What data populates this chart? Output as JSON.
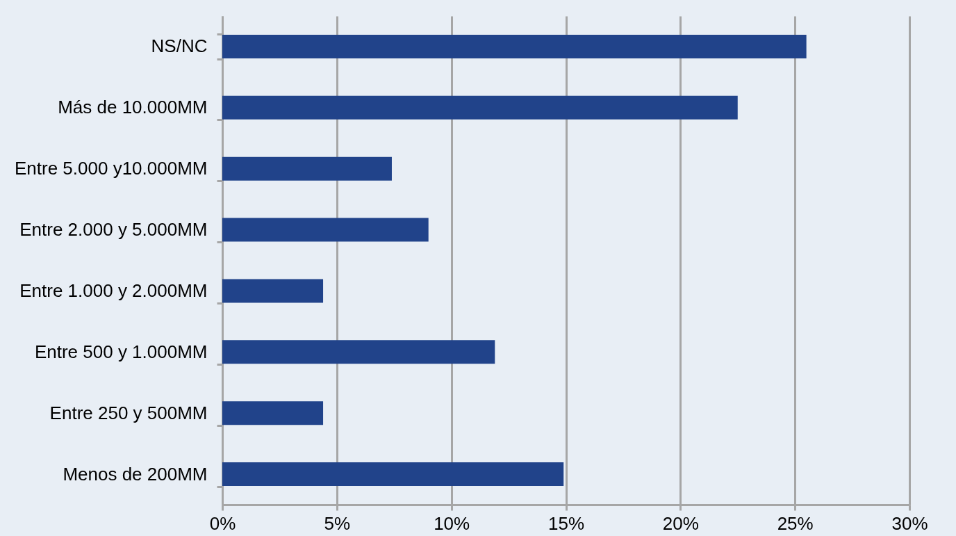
{
  "chart_data": {
    "type": "bar",
    "orientation": "horizontal",
    "categories": [
      "NS/NC",
      "Más de 10.000MM",
      "Entre 5.000 y10.000MM",
      "Entre 2.000 y 5.000MM",
      "Entre 1.000 y 2.000MM",
      "Entre 500 y 1.000MM",
      "Entre 250 y 500MM",
      "Menos de 200MM"
    ],
    "values": [
      25.5,
      22.5,
      7.4,
      9.0,
      4.4,
      11.9,
      4.4,
      14.9
    ],
    "color": "#21438a",
    "xlim": [
      0,
      30
    ],
    "xticks": [
      {
        "value": 0,
        "label": "0%"
      },
      {
        "value": 5,
        "label": "5%"
      },
      {
        "value": 10,
        "label": "10%"
      },
      {
        "value": 15,
        "label": "15%"
      },
      {
        "value": 20,
        "label": "20%"
      },
      {
        "value": 25,
        "label": "25%"
      },
      {
        "value": 30,
        "label": "30%"
      }
    ],
    "grid": "x"
  }
}
